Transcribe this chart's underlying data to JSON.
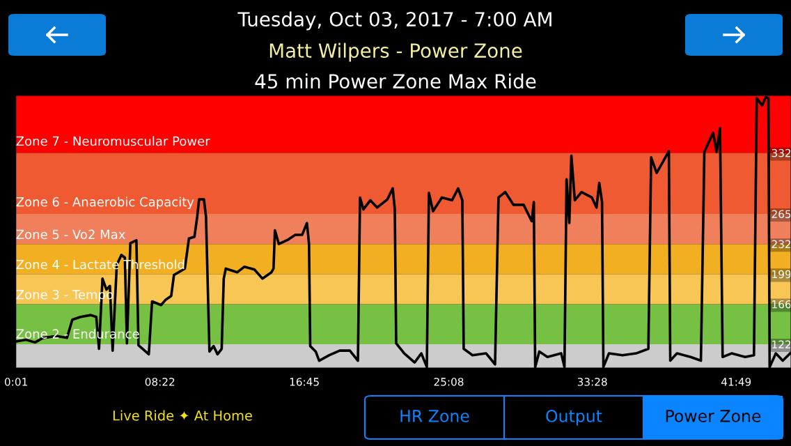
{
  "chart_data": {
    "type": "line",
    "title": "Tuesday, Oct 03, 2017 - 7:00 AM",
    "subtitle": "Matt Wilpers - Power Zone",
    "annotations": [
      "45 min Power Zone Max Ride",
      "Live Ride ✦ At Home",
      "HR Zone",
      "Output",
      "Power Zone"
    ],
    "xlim": [
      0,
      45
    ],
    "ylim": [
      96,
      395
    ],
    "xticks": [
      {
        "value": 0.0167,
        "label": "0:01"
      },
      {
        "value": 8.367,
        "label": "08:22"
      },
      {
        "value": 16.75,
        "label": "16:45"
      },
      {
        "value": 25.133,
        "label": "25:08"
      },
      {
        "value": 33.467,
        "label": "33:28"
      },
      {
        "value": 41.817,
        "label": "41:49"
      }
    ],
    "yticks": [
      122,
      166,
      199,
      232,
      265,
      332
    ],
    "grid": false,
    "marker": "none",
    "line_style": "solid",
    "bands": [
      {
        "axis": "y",
        "from": 96,
        "to": 122,
        "label": null,
        "color": "#cccccc"
      },
      {
        "axis": "y",
        "from": 122,
        "to": 166,
        "label": "Zone 2 - Endurance",
        "color": "#76c043"
      },
      {
        "axis": "y",
        "from": 166,
        "to": 199,
        "label": "Zone 3 - Tempo",
        "color": "#f7c655"
      },
      {
        "axis": "y",
        "from": 199,
        "to": 232,
        "label": "Zone 4 - Lactate Threshold",
        "color": "#f2af22"
      },
      {
        "axis": "y",
        "from": 232,
        "to": 265,
        "label": "Zone 5 - Vo2 Max",
        "color": "#f07f5c"
      },
      {
        "axis": "y",
        "from": 265,
        "to": 332,
        "label": "Zone 6 - Anaerobic Capacity",
        "color": "#ef5a32"
      },
      {
        "axis": "y",
        "from": 332,
        "to": 395,
        "label": "Zone 7 - Neuromuscular Power",
        "color": "#ff0000"
      }
    ],
    "series": [
      {
        "color": "#000000",
        "x": [
          0,
          0.59,
          1.11,
          1.58,
          2.37,
          2.97,
          3.28,
          3.76,
          4.35,
          4.67,
          4.83,
          5.03,
          5.26,
          5.46,
          5.62,
          5.86,
          6.13,
          6.33,
          6.45,
          6.65,
          7.0,
          7.12,
          7.72,
          7.91,
          8.43,
          8.71,
          9.02,
          9.18,
          9.81,
          10.05,
          10.37,
          10.53,
          10.64,
          10.92,
          11.04,
          11.24,
          11.48,
          11.71,
          11.95,
          12.07,
          12.19,
          12.86,
          13.26,
          13.85,
          14.32,
          14.84,
          14.96,
          15.04,
          15.27,
          15.83,
          16.22,
          16.62,
          16.9,
          17.02,
          17.09,
          17.41,
          17.61,
          18.2,
          18.8,
          19.39,
          19.86,
          19.98,
          20.18,
          20.58,
          20.97,
          21.57,
          21.88,
          22.0,
          22.08,
          22.55,
          23.15,
          23.54,
          23.86,
          23.98,
          24.22,
          24.73,
          25.32,
          25.68,
          25.92,
          26.0,
          26.51,
          27.3,
          27.82,
          28.02,
          28.41,
          28.89,
          29.48,
          29.95,
          30.07,
          30.15,
          30.39,
          30.86,
          31.66,
          31.85,
          31.97,
          32.13,
          32.25,
          32.45,
          32.84,
          33.44,
          33.71,
          33.87,
          34.03,
          34.11,
          34.43,
          35.22,
          36.01,
          36.72,
          36.88,
          37.2,
          37.59,
          37.91,
          37.99,
          38.38,
          39.17,
          39.77,
          39.97,
          40.48,
          40.68,
          40.88,
          41.03,
          41.55,
          42.34,
          42.85,
          43.01,
          43.33,
          43.53,
          43.69,
          43.76,
          44.12,
          44.52,
          44.95
        ],
        "values": [
          125,
          127,
          124,
          129,
          131,
          129,
          149,
          152,
          154,
          152,
          117,
          194,
          182,
          186,
          115,
          209,
          220,
          217,
          123,
          233,
          236,
          121,
          111,
          169,
          165,
          171,
          175,
          198,
          205,
          238,
          240,
          262,
          281,
          281,
          262,
          114,
          120,
          111,
          117,
          194,
          205,
          201,
          207,
          204,
          194,
          201,
          205,
          247,
          232,
          237,
          242,
          242,
          255,
          232,
          120,
          114,
          104,
          110,
          115,
          115,
          104,
          283,
          270,
          280,
          272,
          281,
          293,
          270,
          123,
          112,
          102,
          112,
          97,
          288,
          268,
          283,
          280,
          293,
          280,
          117,
          110,
          112,
          100,
          283,
          289,
          275,
          275,
          257,
          278,
          97,
          114,
          108,
          112,
          97,
          303,
          255,
          329,
          280,
          289,
          283,
          272,
          299,
          278,
          97,
          112,
          110,
          112,
          117,
          327,
          310,
          323,
          334,
          104,
          112,
          108,
          104,
          333,
          354,
          333,
          359,
          108,
          112,
          108,
          110,
          392,
          384,
          393,
          392,
          97,
          112,
          104,
          112
        ]
      }
    ]
  }
}
